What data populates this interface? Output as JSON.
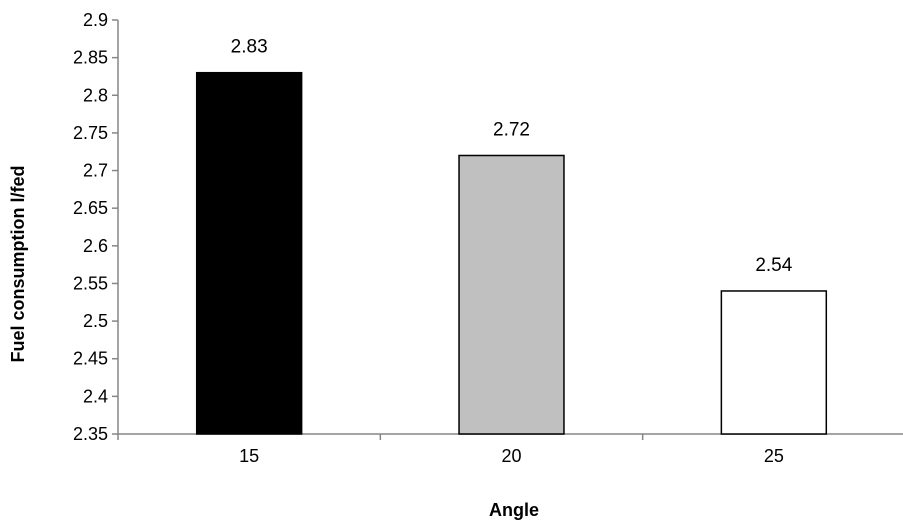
{
  "chart_data": {
    "type": "bar",
    "title": "",
    "xlabel": "Angle",
    "ylabel": "Fuel consumption l/fed",
    "categories": [
      "15",
      "20",
      "25"
    ],
    "values": [
      2.83,
      2.72,
      2.54
    ],
    "data_labels": [
      "2.83",
      "2.72",
      "2.54"
    ],
    "bar_colors": [
      "#000000",
      "#c0c0c0",
      "#ffffff"
    ],
    "bar_outline": "#000000",
    "ylim": [
      2.35,
      2.9
    ],
    "y_ticks": [
      2.35,
      2.4,
      2.45,
      2.5,
      2.55,
      2.6,
      2.65,
      2.7,
      2.75,
      2.8,
      2.85,
      2.9
    ],
    "y_tick_labels": [
      "2.35",
      "2.4",
      "2.45",
      "2.5",
      "2.55",
      "2.6",
      "2.65",
      "2.7",
      "2.75",
      "2.8",
      "2.85",
      "2.9"
    ],
    "grid": false,
    "legend": "none"
  }
}
